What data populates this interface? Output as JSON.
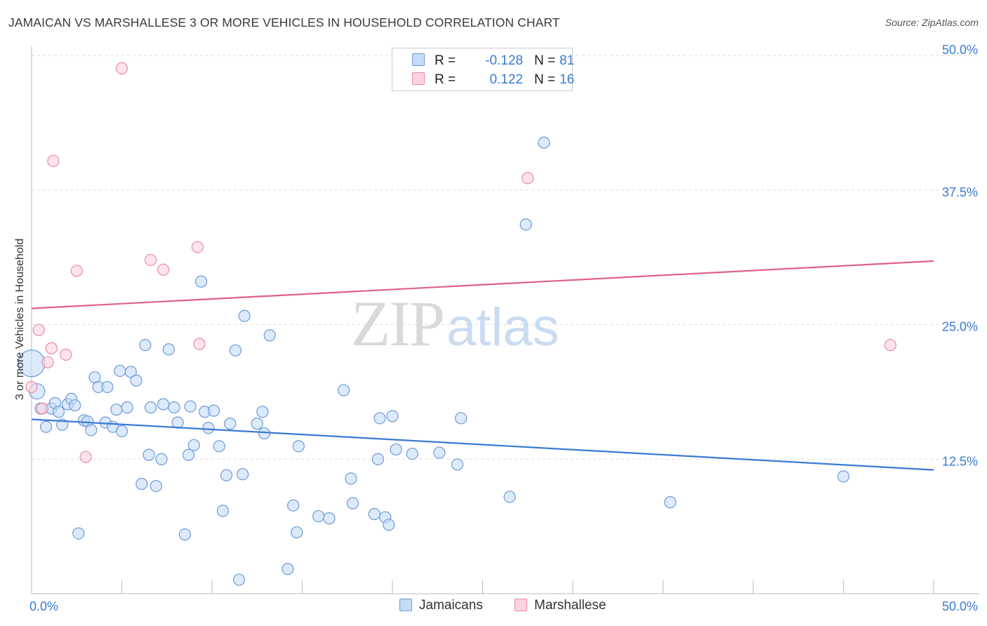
{
  "header": {
    "title": "JAMAICAN VS MARSHALLESE 3 OR MORE VEHICLES IN HOUSEHOLD CORRELATION CHART",
    "source": "Source: ZipAtlas.com"
  },
  "watermark": {
    "part1": "ZIP",
    "part2": "atlas"
  },
  "legend": {
    "rows": [
      {
        "r_label": "R =",
        "r_value": "-0.128",
        "n_label": "N =",
        "n_value": "81",
        "color": "#a9c8f0",
        "border": "#6f9ad6"
      },
      {
        "r_label": "R =",
        "r_value": "0.122",
        "n_label": "N =",
        "n_value": "16",
        "color": "#f9c6d3",
        "border": "#e88aa6"
      }
    ]
  },
  "bottom_legend": [
    {
      "label": "Jamaicans",
      "color": "#a9c8f0",
      "border": "#6f9ad6"
    },
    {
      "label": "Marshallese",
      "color": "#f9c6d3",
      "border": "#e88aa6"
    }
  ],
  "chart_data": {
    "type": "scatter",
    "title": "JAMAICAN VS MARSHALLESE 3 OR MORE VEHICLES IN HOUSEHOLD CORRELATION CHART",
    "xlabel": "",
    "ylabel": "3 or more Vehicles in Household",
    "xlim": [
      0,
      50
    ],
    "ylim": [
      0,
      50
    ],
    "x_tick_labels": [
      "0.0%",
      "50.0%"
    ],
    "y_ticks": [
      12.5,
      25.0,
      37.5,
      50.0
    ],
    "y_tick_labels": [
      "12.5%",
      "25.0%",
      "37.5%",
      "50.0%"
    ],
    "grid": true,
    "series": [
      {
        "name": "Jamaicans",
        "color": "#6f9ad6",
        "fill": "#c5dcf7",
        "trend": {
          "x": [
            0,
            50
          ],
          "y": [
            16.2,
            11.5
          ],
          "color": "#3a7bd5"
        },
        "points": [
          [
            0,
            21.4,
            "big"
          ],
          [
            0.3,
            18.8,
            "med"
          ],
          [
            0.5,
            17.2
          ],
          [
            0.8,
            15.5
          ],
          [
            1.1,
            17.2
          ],
          [
            1.3,
            17.7
          ],
          [
            1.5,
            16.9
          ],
          [
            1.7,
            15.7
          ],
          [
            2.0,
            17.6
          ],
          [
            2.2,
            18.1
          ],
          [
            2.4,
            17.5
          ],
          [
            2.6,
            5.6
          ],
          [
            2.9,
            16.1
          ],
          [
            3.1,
            16.0
          ],
          [
            3.3,
            15.2
          ],
          [
            3.5,
            20.1
          ],
          [
            3.7,
            19.2
          ],
          [
            4.1,
            15.9
          ],
          [
            4.2,
            19.2
          ],
          [
            4.5,
            15.5
          ],
          [
            4.7,
            17.1
          ],
          [
            4.9,
            20.7
          ],
          [
            5.0,
            15.1
          ],
          [
            5.3,
            17.3
          ],
          [
            5.5,
            20.6
          ],
          [
            5.8,
            19.8
          ],
          [
            6.1,
            10.2
          ],
          [
            6.3,
            23.1
          ],
          [
            6.5,
            12.9
          ],
          [
            6.6,
            17.3
          ],
          [
            6.9,
            10.0
          ],
          [
            7.2,
            12.5
          ],
          [
            7.3,
            17.6
          ],
          [
            7.6,
            22.7
          ],
          [
            7.9,
            17.3
          ],
          [
            8.1,
            15.9
          ],
          [
            8.5,
            5.5
          ],
          [
            8.7,
            12.9
          ],
          [
            8.8,
            17.4
          ],
          [
            9.0,
            13.8
          ],
          [
            9.4,
            29.0
          ],
          [
            9.6,
            16.9
          ],
          [
            9.8,
            15.4
          ],
          [
            10.1,
            17.0
          ],
          [
            10.4,
            13.7
          ],
          [
            10.6,
            7.7
          ],
          [
            10.8,
            11.0
          ],
          [
            11.0,
            15.8
          ],
          [
            11.3,
            22.6
          ],
          [
            11.5,
            1.3
          ],
          [
            11.7,
            11.1
          ],
          [
            11.8,
            25.8
          ],
          [
            12.5,
            15.8
          ],
          [
            12.8,
            16.9
          ],
          [
            12.9,
            14.9
          ],
          [
            13.2,
            24.0
          ],
          [
            14.2,
            2.3
          ],
          [
            14.5,
            8.2
          ],
          [
            14.7,
            5.7
          ],
          [
            14.8,
            13.7
          ],
          [
            15.9,
            7.2
          ],
          [
            16.5,
            7.0
          ],
          [
            17.3,
            18.9
          ],
          [
            17.7,
            10.7
          ],
          [
            17.8,
            8.4
          ],
          [
            19.0,
            7.4
          ],
          [
            19.2,
            12.5
          ],
          [
            19.3,
            16.3
          ],
          [
            19.6,
            7.1
          ],
          [
            19.8,
            6.4
          ],
          [
            20.0,
            16.5
          ],
          [
            20.2,
            13.4
          ],
          [
            21.1,
            13.0
          ],
          [
            22.6,
            13.1
          ],
          [
            23.6,
            12.0
          ],
          [
            23.8,
            16.3
          ],
          [
            26.5,
            9.0
          ],
          [
            27.4,
            34.3
          ],
          [
            28.4,
            41.9
          ],
          [
            35.4,
            8.5
          ],
          [
            45.0,
            10.9
          ]
        ]
      },
      {
        "name": "Marshallese",
        "color": "#e88aa6",
        "fill": "#fbd3de",
        "trend": {
          "x": [
            0,
            50
          ],
          "y": [
            26.5,
            30.9
          ],
          "color": "#e0608a"
        },
        "points": [
          [
            0,
            19.2
          ],
          [
            0.4,
            24.5
          ],
          [
            0.6,
            17.2
          ],
          [
            0.9,
            21.5
          ],
          [
            1.1,
            22.8
          ],
          [
            1.2,
            40.2
          ],
          [
            1.9,
            22.2
          ],
          [
            2.5,
            30.0
          ],
          [
            3.0,
            12.7
          ],
          [
            5.0,
            48.8
          ],
          [
            6.6,
            31.0
          ],
          [
            7.3,
            30.1
          ],
          [
            9.2,
            32.2
          ],
          [
            9.3,
            23.2
          ],
          [
            27.5,
            38.6
          ],
          [
            47.6,
            23.1
          ]
        ]
      }
    ]
  }
}
